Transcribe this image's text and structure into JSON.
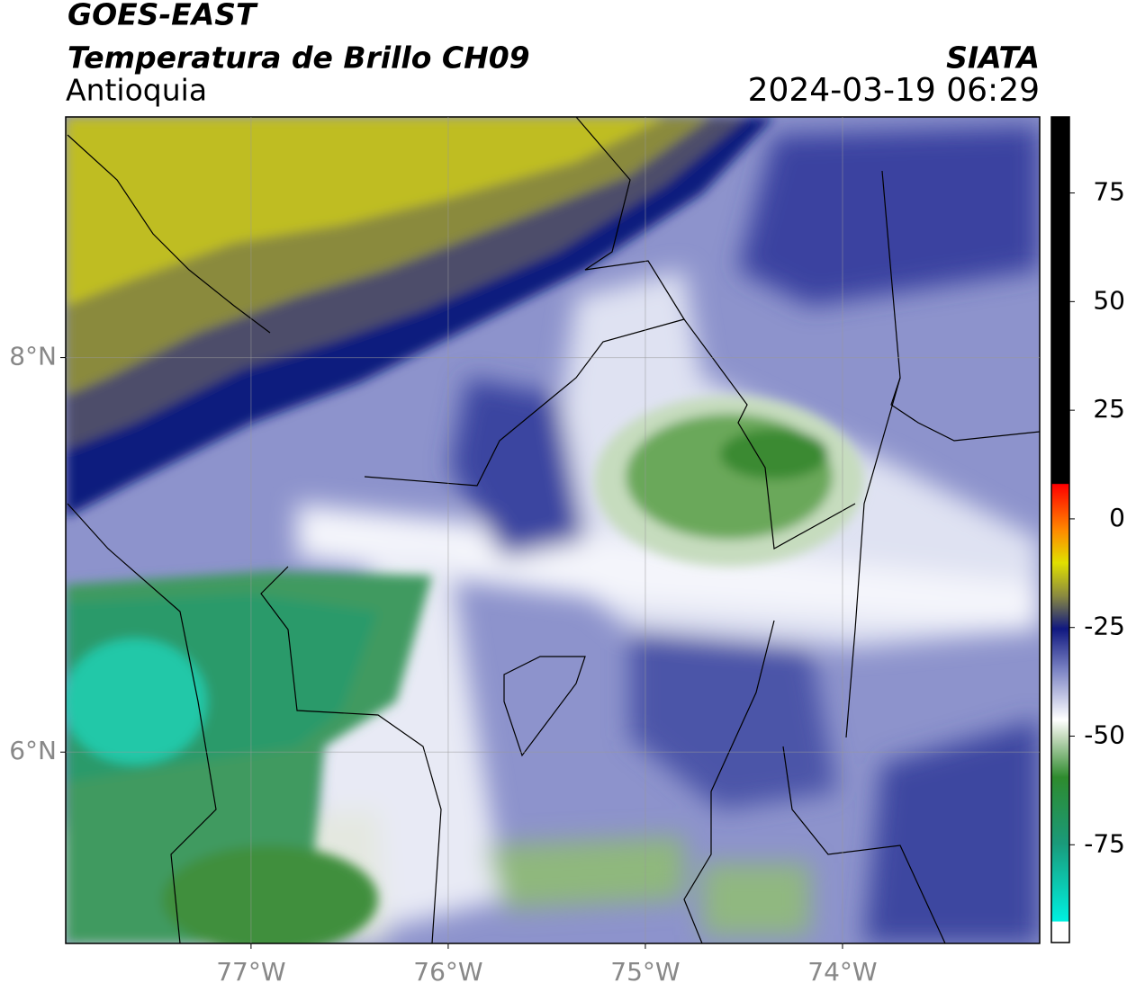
{
  "header": {
    "title": "GOES-EAST",
    "subtitle": "Temperatura de Brillo CH09",
    "region": "Antioquia",
    "source": "SIATA",
    "datetime": "2024-03-19 06:29"
  },
  "map": {
    "lon_range": [
      -77.94,
      -73.0
    ],
    "lat_range": [
      5.03,
      9.22
    ],
    "lon_ticks": [
      {
        "value": -77,
        "label": "77°W"
      },
      {
        "value": -76,
        "label": "76°W"
      },
      {
        "value": -75,
        "label": "75°W"
      },
      {
        "value": -74,
        "label": "74°W"
      }
    ],
    "lat_ticks": [
      {
        "value": 8,
        "label": "8°N"
      },
      {
        "value": 6,
        "label": "6°N"
      }
    ],
    "grid": true
  },
  "colorbar": {
    "range": [
      -97.5,
      92.5
    ],
    "ticks": [
      75,
      50,
      25,
      0,
      -25,
      -50,
      -75
    ]
  }
}
